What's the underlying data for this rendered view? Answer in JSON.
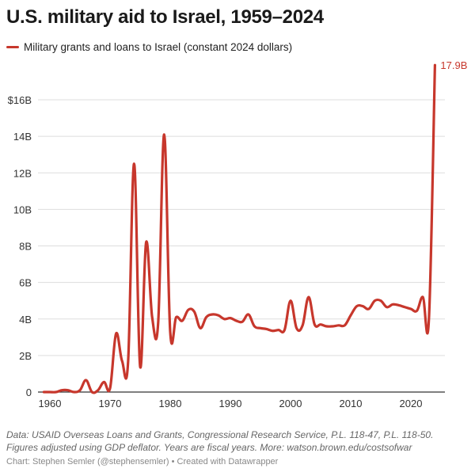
{
  "title": "U.S. military aid to Israel, 1959–2024",
  "notes": [
    "Data: USAID Overseas Loans and Grants, Congressional Research Service, P.L. 118-47, P.L. 118-50.",
    "Figures adjusted using GDP deflator. Years are fiscal years. More: watson.brown.edu/costsofwar"
  ],
  "credit": "Chart: Stephen Semler (@stephensemler) • Created with Datawrapper",
  "chart_data": {
    "type": "line",
    "title": "U.S. military aid to Israel, 1959–2024",
    "xlabel": "",
    "ylabel": "",
    "xlim": [
      1959,
      2024
    ],
    "ylim": [
      0,
      17.9
    ],
    "x_ticks": [
      "1960",
      "1970",
      "1980",
      "1990",
      "2000",
      "2010",
      "2020"
    ],
    "y_ticks": [
      {
        "v": 0,
        "label": "0"
      },
      {
        "v": 2,
        "label": "2B"
      },
      {
        "v": 4,
        "label": "4B"
      },
      {
        "v": 6,
        "label": "6B"
      },
      {
        "v": 8,
        "label": "8B"
      },
      {
        "v": 10,
        "label": "10B"
      },
      {
        "v": 12,
        "label": "12B"
      },
      {
        "v": 14,
        "label": "14B"
      },
      {
        "v": 16,
        "label": "$16B"
      }
    ],
    "grid": true,
    "legend": "top-left",
    "color": "#c7372c",
    "end_label": "17.9B",
    "series": [
      {
        "name": "Military grants and loans to Israel (constant 2024 dollars)",
        "x": [
          1959,
          1960,
          1961,
          1962,
          1963,
          1964,
          1965,
          1966,
          1967,
          1968,
          1969,
          1970,
          1971,
          1972,
          1973,
          1974,
          1975,
          1976,
          1977,
          1978,
          1979,
          1980,
          1981,
          1982,
          1983,
          1984,
          1985,
          1986,
          1987,
          1988,
          1989,
          1990,
          1991,
          1992,
          1993,
          1994,
          1995,
          1996,
          1997,
          1998,
          1999,
          2000,
          2001,
          2002,
          2003,
          2004,
          2005,
          2006,
          2007,
          2008,
          2009,
          2010,
          2011,
          2012,
          2013,
          2014,
          2015,
          2016,
          2017,
          2018,
          2019,
          2020,
          2021,
          2022,
          2023,
          2024
        ],
        "values": [
          0,
          0,
          0,
          0.1,
          0.1,
          0,
          0.1,
          0.65,
          0,
          0.1,
          0.55,
          0.2,
          3.2,
          1.7,
          1.65,
          12.5,
          1.4,
          8.2,
          4.1,
          3.8,
          14.1,
          3.3,
          4.1,
          3.9,
          4.5,
          4.4,
          3.5,
          4.1,
          4.25,
          4.2,
          4.0,
          4.05,
          3.9,
          3.85,
          4.25,
          3.6,
          3.5,
          3.45,
          3.35,
          3.4,
          3.4,
          5.0,
          3.5,
          3.65,
          5.2,
          3.7,
          3.7,
          3.6,
          3.6,
          3.65,
          3.65,
          4.2,
          4.7,
          4.7,
          4.55,
          5.0,
          5.0,
          4.65,
          4.8,
          4.75,
          4.65,
          4.55,
          4.45,
          5.2,
          4.0,
          17.9
        ]
      }
    ]
  }
}
